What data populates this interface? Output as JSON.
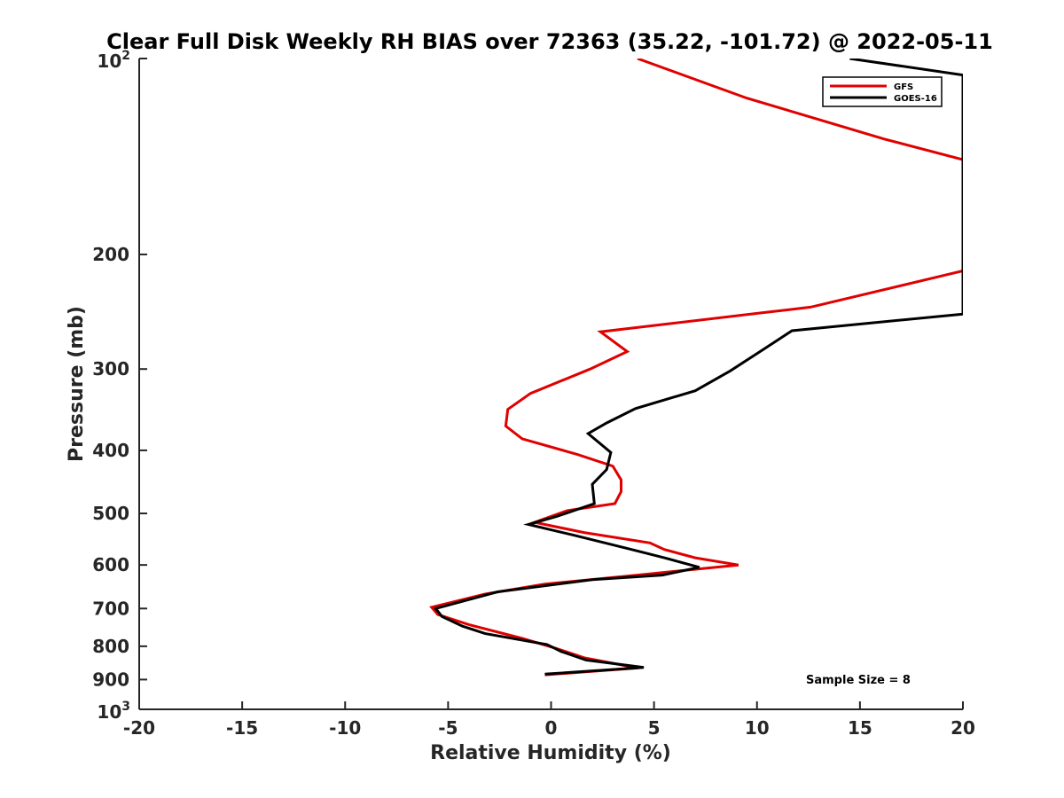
{
  "chart_data": {
    "type": "line",
    "title": "Clear Full Disk Weekly RH BIAS over 72363 (35.22, -101.72) @ 2022-05-11",
    "xlabel": "Relative Humidity (%)",
    "ylabel": "Pressure (mb)",
    "xlim": [
      -20,
      20
    ],
    "ylim": [
      100,
      1000
    ],
    "y_scale": "log",
    "y_reversed": true,
    "grid": false,
    "x_ticks": [
      -20,
      -15,
      -10,
      -5,
      0,
      5,
      10,
      15,
      20
    ],
    "x_tick_labels": [
      "-20",
      "-15",
      "-10",
      "-5",
      "0",
      "5",
      "10",
      "15",
      "20"
    ],
    "y_ticks": [
      {
        "value": 100,
        "base": "10",
        "exp": "2"
      },
      {
        "value": 200,
        "label": "200"
      },
      {
        "value": 300,
        "label": "300"
      },
      {
        "value": 400,
        "label": "400"
      },
      {
        "value": 500,
        "label": "500"
      },
      {
        "value": 600,
        "label": "600"
      },
      {
        "value": 700,
        "label": "700"
      },
      {
        "value": 800,
        "label": "800"
      },
      {
        "value": 900,
        "label": "900"
      },
      {
        "value": 1000,
        "base": "10",
        "exp": "3"
      }
    ],
    "legend_position": "top-right",
    "annotation": "Sample Size = 8",
    "series": [
      {
        "name": "GFS",
        "color": "#e00000",
        "points": [
          [
            4.2,
            100
          ],
          [
            9.5,
            115
          ],
          [
            16.2,
            133
          ],
          [
            20,
            143
          ],
          [
            20,
            212
          ],
          [
            12.6,
            241
          ],
          [
            10.2,
            246
          ],
          [
            2.4,
            263
          ],
          [
            3.7,
            282
          ],
          [
            1.9,
            300
          ],
          [
            -1.0,
            327
          ],
          [
            -2.1,
            346
          ],
          [
            -2.2,
            367
          ],
          [
            -1.4,
            384
          ],
          [
            1.3,
            406
          ],
          [
            3.0,
            423
          ],
          [
            3.4,
            444
          ],
          [
            3.4,
            463
          ],
          [
            3.1,
            483
          ],
          [
            0.8,
            495
          ],
          [
            -0.8,
            516
          ],
          [
            1.6,
            535
          ],
          [
            4.8,
            555
          ],
          [
            5.5,
            568
          ],
          [
            7.0,
            585
          ],
          [
            9.1,
            600
          ],
          [
            4.2,
            622
          ],
          [
            -0.3,
            642
          ],
          [
            -3.2,
            665
          ],
          [
            -5.8,
            697
          ],
          [
            -5.5,
            715
          ],
          [
            -4.0,
            741
          ],
          [
            -1.4,
            778
          ],
          [
            0.2,
            805
          ],
          [
            1.6,
            833
          ],
          [
            4.2,
            864
          ],
          [
            -0.3,
            885
          ]
        ]
      },
      {
        "name": "GOES-16",
        "color": "#000000",
        "points": [
          [
            14.5,
            100
          ],
          [
            20,
            106
          ],
          [
            20,
            247
          ],
          [
            11.7,
            262
          ],
          [
            10.3,
            280
          ],
          [
            8.7,
            302
          ],
          [
            7.0,
            324
          ],
          [
            4.1,
            345
          ],
          [
            2.7,
            363
          ],
          [
            1.8,
            377
          ],
          [
            2.9,
            403
          ],
          [
            2.7,
            428
          ],
          [
            2.0,
            451
          ],
          [
            2.1,
            483
          ],
          [
            0.3,
            505
          ],
          [
            -1.1,
            520
          ],
          [
            1.1,
            540
          ],
          [
            3.9,
            568
          ],
          [
            5.5,
            585
          ],
          [
            7.2,
            605
          ],
          [
            5.4,
            622
          ],
          [
            2.0,
            632
          ],
          [
            -2.6,
            660
          ],
          [
            -5.6,
            700
          ],
          [
            -5.3,
            720
          ],
          [
            -4.3,
            745
          ],
          [
            -3.2,
            765
          ],
          [
            -0.2,
            795
          ],
          [
            0.5,
            815
          ],
          [
            1.7,
            840
          ],
          [
            4.5,
            862
          ],
          [
            -0.3,
            883
          ]
        ]
      }
    ]
  }
}
